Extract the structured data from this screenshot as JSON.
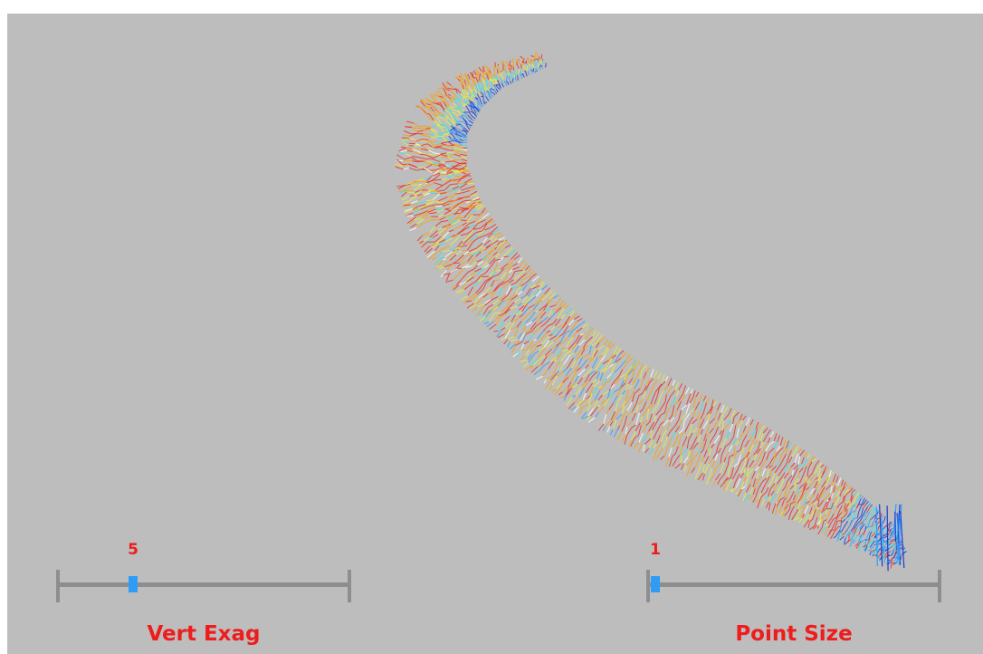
{
  "viewer": {
    "background_color": "#bdbdbd",
    "cloud_colormap": [
      "#1e3cd2",
      "#2ea0ff",
      "#30e6e6",
      "#eaf030",
      "#ffa000",
      "#f03020",
      "#ffffff"
    ]
  },
  "sliders": {
    "vert_exag": {
      "label": "Vert Exag",
      "value": "5",
      "position": 0.26
    },
    "point_size": {
      "label": "Point Size",
      "value": "1",
      "position": 0.03
    }
  },
  "accent": {
    "text_color": "#ee1c1c",
    "thumb_color": "#2f9bf5",
    "track_color": "#8e8e8e"
  }
}
